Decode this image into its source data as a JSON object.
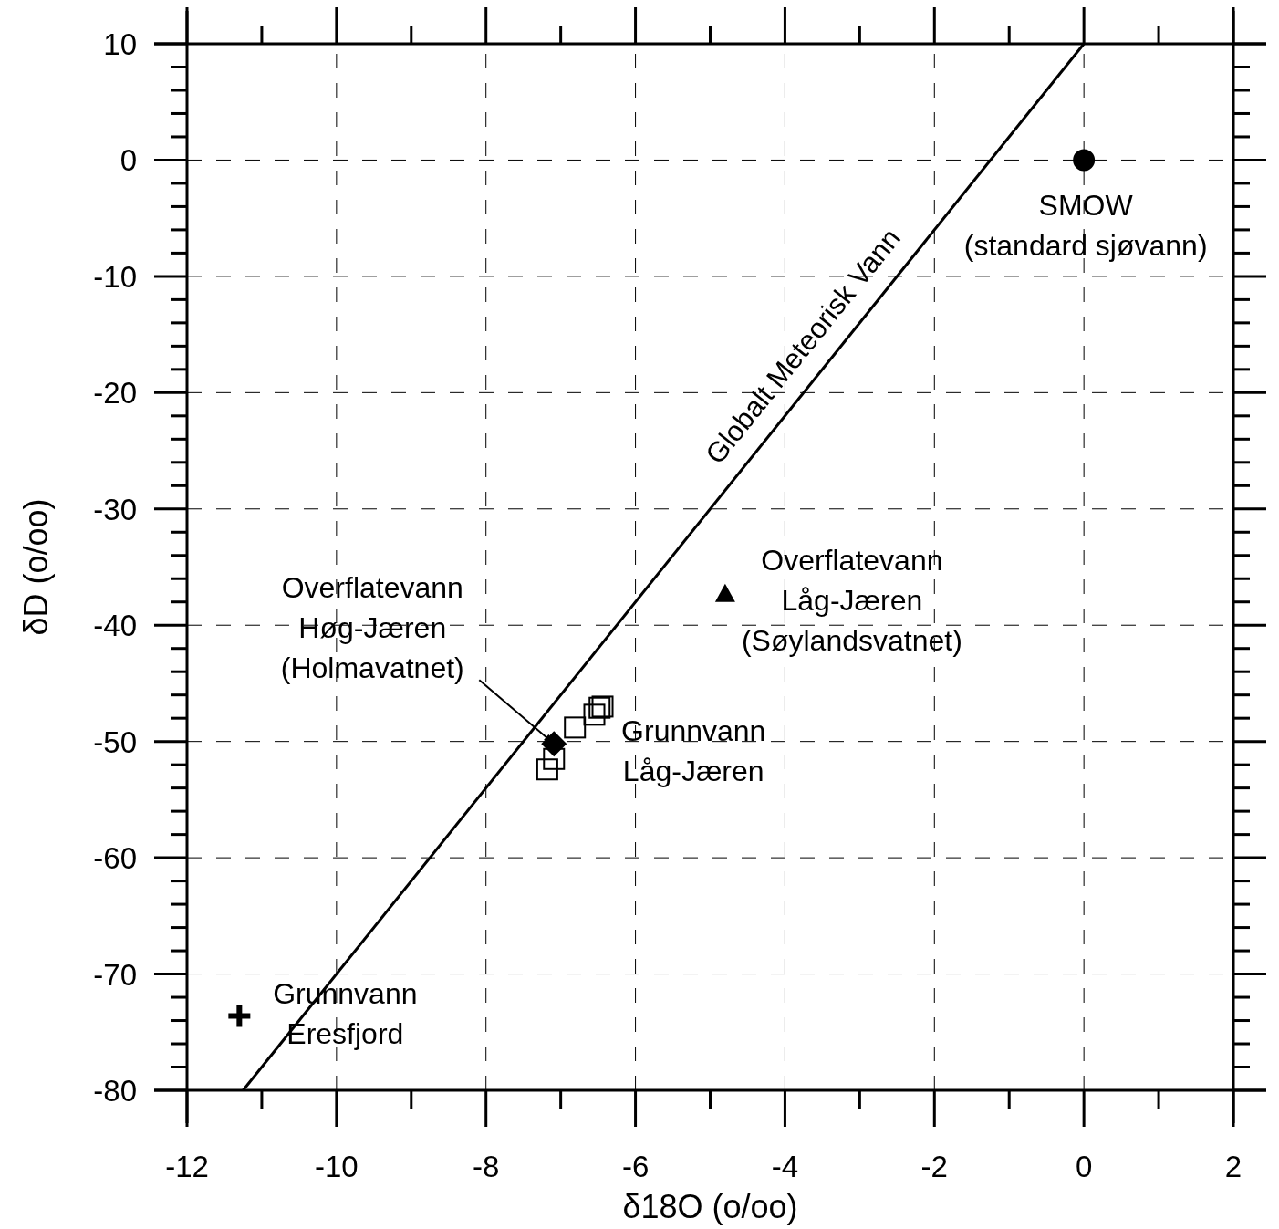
{
  "chart_data": {
    "type": "scatter",
    "xlabel": "δ18O (o/oo)",
    "ylabel": "δD (o/oo)",
    "xlim": [
      -12,
      2
    ],
    "ylim": [
      -80,
      10
    ],
    "xticks": [
      -12,
      -10,
      -8,
      -6,
      -4,
      -2,
      0,
      2
    ],
    "yticks": [
      -80,
      -70,
      -60,
      -50,
      -40,
      -30,
      -20,
      -10,
      0,
      10
    ],
    "grid": true,
    "series": [
      {
        "type": "line",
        "color": "#000000",
        "line_style": "solid",
        "marker": "none",
        "x": [
          -11.25,
          0
        ],
        "values": [
          -80,
          10
        ]
      },
      {
        "color": "#000000",
        "marker": "circle",
        "x": [
          0
        ],
        "values": [
          0
        ]
      },
      {
        "color": "#000000",
        "marker": "triangle",
        "x": [
          -4.8
        ],
        "values": [
          -37.3
        ]
      },
      {
        "color": "#000000",
        "marker": "diamond",
        "x": [
          -7.09
        ],
        "values": [
          -50.2
        ]
      },
      {
        "color": "#000000",
        "marker": "square",
        "x": [
          -6.44,
          -6.48,
          -6.55,
          -6.81,
          -7.09,
          -7.18
        ],
        "values": [
          -47.0,
          -47.1,
          -47.7,
          -48.8,
          -51.5,
          -52.4
        ]
      },
      {
        "color": "#000000",
        "marker": "cross",
        "x": [
          -11.3
        ],
        "values": [
          -73.6
        ]
      }
    ],
    "annotations": [
      {
        "text": "Globalt Meteorisk Vann",
        "x": -3.45,
        "y": -17.6
      },
      {
        "text": "SMOW\n(standard sjøvann)",
        "x": 0,
        "y": 0
      },
      {
        "text": "Overflatevann\nLåg-Jæren\n(Søylandsvatnet)",
        "x": -4.8,
        "y": -37.3
      },
      {
        "text": "Overflatevann\nHøg-Jæren\n(Holmavatnet)",
        "x": -7.09,
        "y": -50.2
      },
      {
        "text": "Grunnvann\nLåg-Jæren",
        "x": -6.48,
        "y": -47.1
      },
      {
        "text": "Grunnvann\nEresfjord",
        "x": -11.3,
        "y": -73.6
      }
    ]
  }
}
